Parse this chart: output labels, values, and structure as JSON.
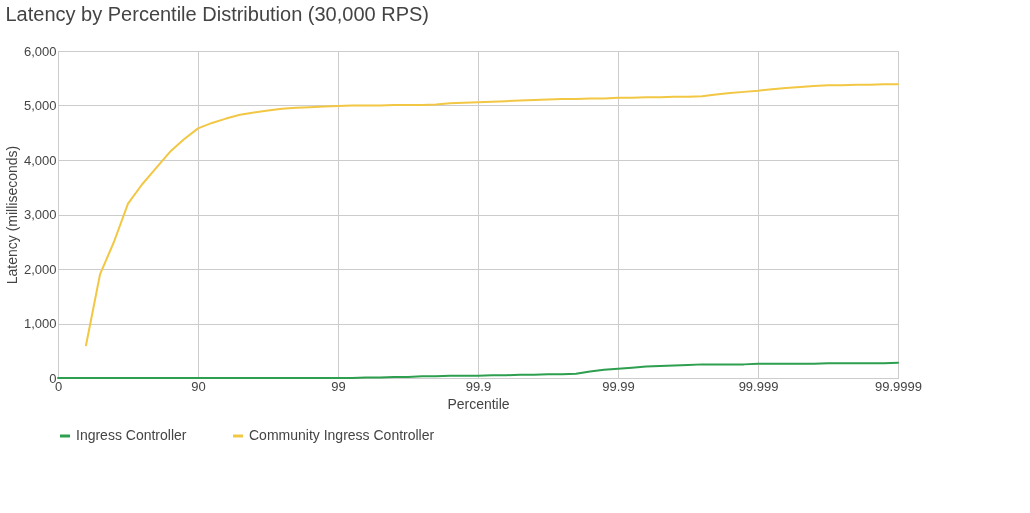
{
  "chart_data": {
    "type": "line",
    "title": "Latency by Percentile Distribution (30,000 RPS)",
    "xlabel": "Percentile",
    "ylabel": "Latency (milliseconds)",
    "categories": [
      "0",
      null,
      null,
      null,
      null,
      null,
      null,
      null,
      null,
      null,
      "90",
      null,
      null,
      null,
      null,
      null,
      null,
      null,
      null,
      null,
      "99",
      null,
      null,
      null,
      null,
      null,
      null,
      null,
      null,
      null,
      "99.9",
      null,
      null,
      null,
      null,
      null,
      null,
      null,
      null,
      null,
      "99.99",
      null,
      null,
      null,
      null,
      null,
      null,
      null,
      null,
      null,
      "99.999",
      null,
      null,
      null,
      null,
      null,
      null,
      null,
      null,
      null,
      "99.9999"
    ],
    "ylim": [
      0,
      6000
    ],
    "yticks": [
      0,
      {
        "value": 1000,
        "label": "1,000"
      },
      {
        "value": 2000,
        "label": "2,000"
      },
      {
        "value": 3000,
        "label": "3,000"
      },
      {
        "value": 4000,
        "label": "4,000"
      },
      {
        "value": 5000,
        "label": "5,000"
      },
      {
        "value": 6000,
        "label": "6,000"
      }
    ],
    "grid": true,
    "legend": "bottom",
    "line_style": "solid",
    "series": [
      {
        "name": "Ingress Controller",
        "color": "#2e9e4f",
        "values": [
          0,
          0,
          0,
          0,
          0,
          0,
          0,
          0,
          0,
          0,
          0,
          0,
          0,
          0,
          0,
          0,
          0,
          0,
          0,
          0,
          0,
          0,
          10,
          10,
          20,
          20,
          30,
          30,
          40,
          40,
          40,
          50,
          50,
          60,
          60,
          70,
          70,
          80,
          120,
          150,
          170,
          190,
          210,
          220,
          230,
          240,
          250,
          250,
          250,
          250,
          260,
          260,
          260,
          260,
          260,
          270,
          270,
          270,
          270,
          270,
          280
        ]
      },
      {
        "name": "Community Ingress Controller",
        "color": "#f2c744",
        "values": [
          null,
          null,
          600,
          1900,
          2500,
          3200,
          3550,
          3850,
          4150,
          4380,
          4580,
          4680,
          4760,
          4830,
          4870,
          4910,
          4940,
          4960,
          4970,
          4980,
          4990,
          5000,
          5000,
          5000,
          5010,
          5010,
          5010,
          5020,
          5040,
          5050,
          5060,
          5070,
          5080,
          5090,
          5100,
          5110,
          5120,
          5120,
          5130,
          5130,
          5140,
          5140,
          5150,
          5150,
          5160,
          5160,
          5170,
          5200,
          5230,
          5250,
          5270,
          5300,
          5320,
          5340,
          5360,
          5370,
          5370,
          5380,
          5380,
          5390,
          5390
        ]
      }
    ]
  }
}
